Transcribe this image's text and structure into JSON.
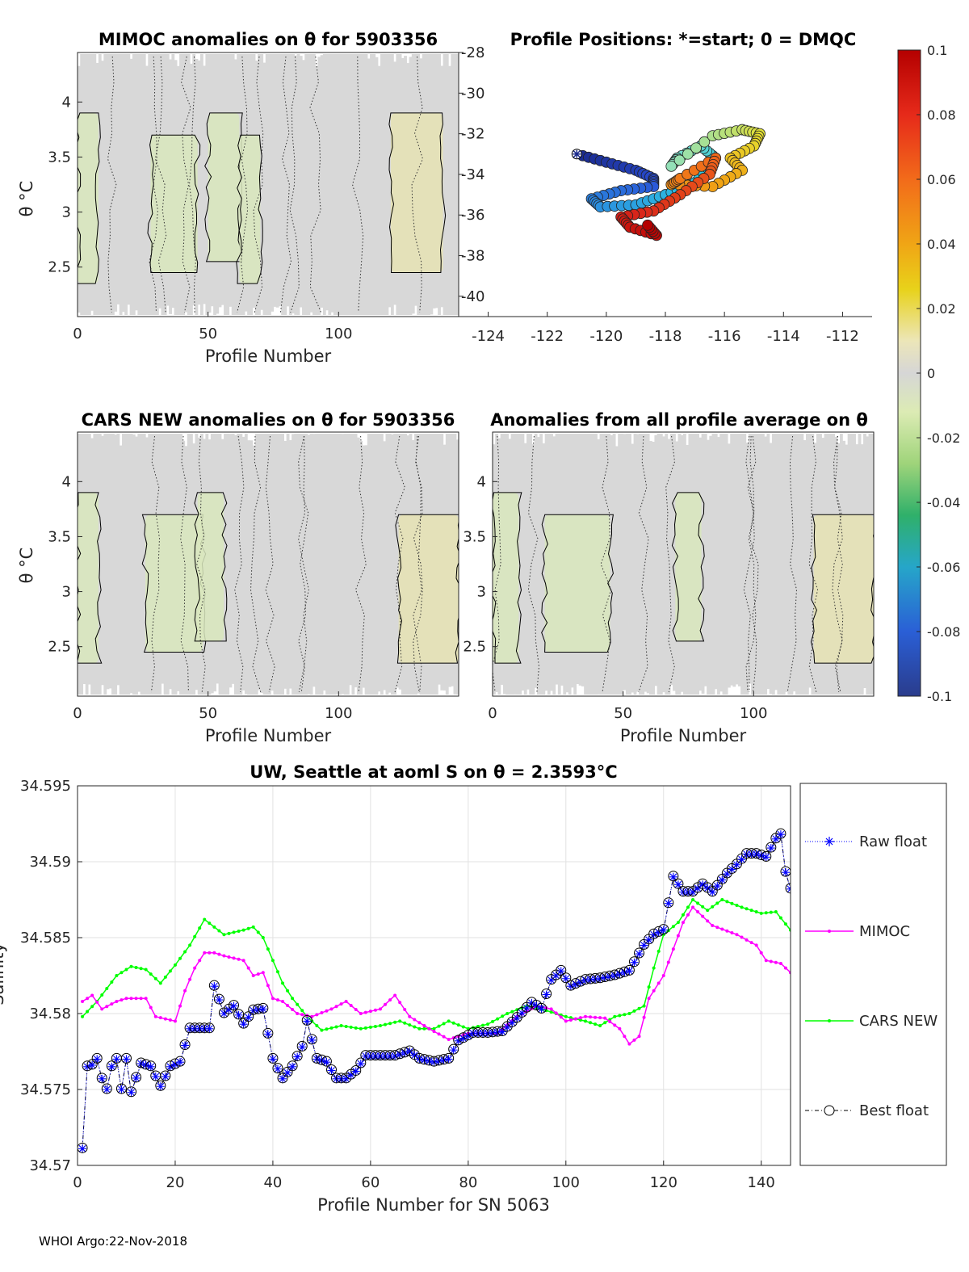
{
  "chart_data": [
    {
      "id": "mimoc",
      "type": "heatmap",
      "title": "MIMOC anomalies on θ  for 5903356",
      "xlabel": "Profile Number",
      "ylabel": "θ °C",
      "xlim": [
        0,
        146
      ],
      "ylim": [
        2.05,
        4.45
      ],
      "xticks": [
        "0",
        "50",
        "100"
      ],
      "xtick_values": [
        0,
        50,
        100
      ],
      "yticks": [
        "2.5",
        "3",
        "3.5",
        "4"
      ],
      "ytick_values": [
        2.5,
        3,
        3.5,
        4
      ],
      "positive_anomaly_bands": [
        [
          0,
          8
        ],
        [
          28,
          46
        ],
        [
          50,
          62
        ],
        [
          62,
          70
        ],
        [
          120,
          140
        ]
      ]
    },
    {
      "id": "positions",
      "type": "scatter",
      "title": "Profile Positions: *=start; 0 = DMQC",
      "xlim": [
        -125,
        -111
      ],
      "ylim": [
        -41,
        -28
      ],
      "xticks": [
        "-124",
        "-122",
        "-120",
        "-118",
        "-116",
        "-114",
        "-112"
      ],
      "xtick_values": [
        -124,
        -122,
        -120,
        -118,
        -116,
        -114,
        -112
      ],
      "yticks": [
        "-28",
        "-30",
        "-32",
        "-34",
        "-36",
        "-38",
        "-40"
      ],
      "ytick_values": [
        -28,
        -30,
        -32,
        -34,
        -36,
        -38,
        -40
      ],
      "start": [
        -121,
        -33.0
      ],
      "track_waypoints": [
        [
          -121,
          -33.0
        ],
        [
          -120,
          -33.4
        ],
        [
          -119,
          -33.8
        ],
        [
          -118.4,
          -34.2
        ],
        [
          -118.4,
          -34.6
        ],
        [
          -119.5,
          -34.8
        ],
        [
          -120.5,
          -35.2
        ],
        [
          -120.2,
          -35.6
        ],
        [
          -119,
          -35.5
        ],
        [
          -118,
          -35.0
        ],
        [
          -117,
          -34.4
        ],
        [
          -116.3,
          -33.2
        ],
        [
          -116.8,
          -32.6
        ],
        [
          -117.6,
          -33.2
        ],
        [
          -117.8,
          -33.6
        ],
        [
          -116.4,
          -32.1
        ],
        [
          -115.4,
          -31.8
        ],
        [
          -114.8,
          -32.0
        ],
        [
          -115,
          -32.6
        ],
        [
          -115.8,
          -33.2
        ],
        [
          -115.4,
          -33.8
        ],
        [
          -116.4,
          -34.6
        ],
        [
          -117.8,
          -34.5
        ],
        [
          -117.5,
          -34.2
        ],
        [
          -116.3,
          -33.2
        ],
        [
          -116.5,
          -34.0
        ],
        [
          -117.5,
          -35.0
        ],
        [
          -118.4,
          -35.8
        ],
        [
          -119.5,
          -36.1
        ],
        [
          -119.2,
          -36.6
        ],
        [
          -118.3,
          -37.0
        ],
        [
          -118.6,
          -36.5
        ]
      ]
    },
    {
      "id": "cars",
      "type": "heatmap",
      "title": "CARS NEW anomalies on θ for 5903356",
      "xlabel": "Profile Number",
      "ylabel": "θ °C",
      "xlim": [
        0,
        146
      ],
      "ylim": [
        2.05,
        4.45
      ],
      "xticks": [
        "0",
        "50",
        "100"
      ],
      "xtick_values": [
        0,
        50,
        100
      ],
      "yticks": [
        "2.5",
        "3",
        "3.5",
        "4"
      ],
      "ytick_values": [
        2.5,
        3,
        3.5,
        4
      ],
      "positive_anomaly_bands": [
        [
          0,
          8
        ],
        [
          26,
          48
        ],
        [
          46,
          56
        ],
        [
          123,
          146
        ]
      ]
    },
    {
      "id": "allavg",
      "type": "heatmap",
      "title": "Anomalies from all profile average on θ",
      "xlabel": "Profile Number",
      "xlim": [
        0,
        146
      ],
      "ylim": [
        2.05,
        4.45
      ],
      "xticks": [
        "0",
        "50",
        "100"
      ],
      "xtick_values": [
        0,
        50,
        100
      ],
      "yticks": [
        "2.5",
        "3",
        "3.5",
        "4"
      ],
      "ytick_values": [
        2.5,
        3,
        3.5,
        4
      ],
      "positive_anomaly_bands": [
        [
          0,
          10
        ],
        [
          20,
          45
        ],
        [
          70,
          80
        ],
        [
          123,
          146
        ]
      ]
    },
    {
      "id": "colorbar",
      "type": "heatmap",
      "clim": [
        -0.1,
        0.1
      ],
      "ticks": [
        "0.1",
        "0.08",
        "0.06",
        "0.04",
        "0.02",
        "0",
        "-0.02",
        "-0.04",
        "-0.06",
        "-0.08",
        "-0.1"
      ],
      "tick_values": [
        0.1,
        0.08,
        0.06,
        0.04,
        0.02,
        0,
        -0.02,
        -0.04,
        -0.06,
        -0.08,
        -0.1
      ]
    },
    {
      "id": "salinity",
      "type": "line",
      "title": "UW, Seattle at aoml S on θ = 2.3593°C",
      "xlabel": "Profile Number for SN 5063",
      "ylabel": "Salinity",
      "xlim": [
        0,
        146
      ],
      "ylim": [
        34.57,
        34.595
      ],
      "xticks": [
        "0",
        "20",
        "40",
        "60",
        "80",
        "100",
        "120",
        "140"
      ],
      "xtick_values": [
        0,
        20,
        40,
        60,
        80,
        100,
        120,
        140
      ],
      "yticks": [
        "34.57",
        "34.575",
        "34.58",
        "34.585",
        "34.59",
        "34.595"
      ],
      "ytick_values": [
        34.57,
        34.575,
        34.58,
        34.585,
        34.59,
        34.595
      ],
      "grid": true,
      "legend_placement": "right",
      "series": [
        {
          "name": "Raw float",
          "color": "#0000ff",
          "keypoints": [
            [
              1,
              34.5711
            ],
            [
              2,
              34.5765
            ],
            [
              3,
              34.5766
            ],
            [
              4,
              34.577
            ],
            [
              5,
              34.5757
            ],
            [
              6,
              34.575
            ],
            [
              7,
              34.5765
            ],
            [
              8,
              34.577
            ],
            [
              9,
              34.575
            ],
            [
              10,
              34.577
            ],
            [
              11,
              34.5748
            ],
            [
              13,
              34.5767
            ],
            [
              15,
              34.5765
            ],
            [
              17,
              34.5752
            ],
            [
              19,
              34.5765
            ],
            [
              21,
              34.5768
            ],
            [
              23,
              34.579
            ],
            [
              25,
              34.579
            ],
            [
              27,
              34.579
            ],
            [
              28,
              34.5818
            ],
            [
              30,
              34.58
            ],
            [
              32,
              34.5805
            ],
            [
              34,
              34.5793
            ],
            [
              36,
              34.5802
            ],
            [
              38,
              34.5803
            ],
            [
              40,
              34.577
            ],
            [
              42,
              34.5757
            ],
            [
              44,
              34.5765
            ],
            [
              46,
              34.5778
            ],
            [
              47,
              34.5795
            ],
            [
              49,
              34.577
            ],
            [
              51,
              34.5768
            ],
            [
              53,
              34.5757
            ],
            [
              55,
              34.5757
            ],
            [
              57,
              34.5762
            ],
            [
              59,
              34.5772
            ],
            [
              62,
              34.5772
            ],
            [
              65,
              34.5772
            ],
            [
              68,
              34.5775
            ],
            [
              70,
              34.577
            ],
            [
              73,
              34.5768
            ],
            [
              76,
              34.577
            ],
            [
              78,
              34.5782
            ],
            [
              81,
              34.5787
            ],
            [
              84,
              34.5787
            ],
            [
              87,
              34.5788
            ],
            [
              90,
              34.5797
            ],
            [
              93,
              34.5807
            ],
            [
              95,
              34.5803
            ],
            [
              97,
              34.5822
            ],
            [
              99,
              34.5828
            ],
            [
              101,
              34.5818
            ],
            [
              104,
              34.5822
            ],
            [
              107,
              34.5823
            ],
            [
              110,
              34.5825
            ],
            [
              113,
              34.5828
            ],
            [
              116,
              34.5845
            ],
            [
              118,
              34.5852
            ],
            [
              120,
              34.5855
            ],
            [
              122,
              34.589
            ],
            [
              124,
              34.588
            ],
            [
              126,
              34.588
            ],
            [
              128,
              34.5885
            ],
            [
              130,
              34.588
            ],
            [
              133,
              34.5892
            ],
            [
              135,
              34.5898
            ],
            [
              137,
              34.5905
            ],
            [
              139,
              34.5905
            ],
            [
              141,
              34.5903
            ],
            [
              143,
              34.5915
            ],
            [
              144,
              34.5918
            ],
            [
              145,
              34.5893
            ],
            [
              146,
              34.5882
            ]
          ]
        },
        {
          "name": "MIMOC",
          "color": "#ff00ff",
          "keypoints": [
            [
              1,
              34.5808
            ],
            [
              3,
              34.5812
            ],
            [
              5,
              34.5803
            ],
            [
              8,
              34.5808
            ],
            [
              10,
              34.581
            ],
            [
              14,
              34.581
            ],
            [
              16,
              34.5798
            ],
            [
              20,
              34.5795
            ],
            [
              22,
              34.5815
            ],
            [
              24,
              34.583
            ],
            [
              26,
              34.584
            ],
            [
              28,
              34.584
            ],
            [
              30,
              34.5838
            ],
            [
              34,
              34.5835
            ],
            [
              36,
              34.5825
            ],
            [
              38,
              34.5827
            ],
            [
              40,
              34.581
            ],
            [
              42,
              34.5808
            ],
            [
              45,
              34.58
            ],
            [
              48,
              34.5798
            ],
            [
              52,
              34.5803
            ],
            [
              55,
              34.5808
            ],
            [
              58,
              34.58
            ],
            [
              62,
              34.5803
            ],
            [
              65,
              34.5812
            ],
            [
              68,
              34.5798
            ],
            [
              72,
              34.579
            ],
            [
              76,
              34.5783
            ],
            [
              80,
              34.5787
            ],
            [
              86,
              34.5787
            ],
            [
              90,
              34.5798
            ],
            [
              94,
              34.5805
            ],
            [
              97,
              34.5803
            ],
            [
              100,
              34.5795
            ],
            [
              104,
              34.5798
            ],
            [
              108,
              34.5797
            ],
            [
              111,
              34.579
            ],
            [
              113,
              34.578
            ],
            [
              115,
              34.5785
            ],
            [
              117,
              34.581
            ],
            [
              120,
              34.5825
            ],
            [
              124,
              34.586
            ],
            [
              126,
              34.587
            ],
            [
              130,
              34.5858
            ],
            [
              135,
              34.5852
            ],
            [
              139,
              34.5845
            ],
            [
              141,
              34.5835
            ],
            [
              144,
              34.5833
            ],
            [
              146,
              34.5827
            ]
          ]
        },
        {
          "name": "CARS NEW",
          "color": "#00ff00",
          "keypoints": [
            [
              1,
              34.5798
            ],
            [
              4,
              34.5808
            ],
            [
              8,
              34.5825
            ],
            [
              11,
              34.5831
            ],
            [
              14,
              34.5829
            ],
            [
              17,
              34.582
            ],
            [
              20,
              34.5832
            ],
            [
              23,
              34.5845
            ],
            [
              26,
              34.5862
            ],
            [
              28,
              34.5857
            ],
            [
              30,
              34.5852
            ],
            [
              34,
              34.5855
            ],
            [
              36,
              34.5857
            ],
            [
              38,
              34.585
            ],
            [
              40,
              34.5835
            ],
            [
              42,
              34.582
            ],
            [
              44,
              34.581
            ],
            [
              47,
              34.5798
            ],
            [
              50,
              34.5789
            ],
            [
              54,
              34.5792
            ],
            [
              58,
              34.579
            ],
            [
              62,
              34.5792
            ],
            [
              66,
              34.5795
            ],
            [
              70,
              34.579
            ],
            [
              73,
              34.579
            ],
            [
              76,
              34.5795
            ],
            [
              80,
              34.579
            ],
            [
              84,
              34.5793
            ],
            [
              88,
              34.58
            ],
            [
              92,
              34.5805
            ],
            [
              96,
              34.5802
            ],
            [
              100,
              34.5798
            ],
            [
              104,
              34.5795
            ],
            [
              107,
              34.5792
            ],
            [
              110,
              34.5798
            ],
            [
              113,
              34.58
            ],
            [
              116,
              34.5805
            ],
            [
              118,
              34.583
            ],
            [
              120,
              34.5852
            ],
            [
              123,
              34.586
            ],
            [
              126,
              34.5875
            ],
            [
              129,
              34.5868
            ],
            [
              132,
              34.5875
            ],
            [
              136,
              34.587
            ],
            [
              140,
              34.5866
            ],
            [
              143,
              34.5867
            ],
            [
              146,
              34.5855
            ]
          ]
        },
        {
          "name": "Best float",
          "color": "#000000",
          "same_as": "Raw float"
        }
      ]
    }
  ],
  "footer": {
    "text": "WHOI Argo:22-Nov-2018"
  }
}
